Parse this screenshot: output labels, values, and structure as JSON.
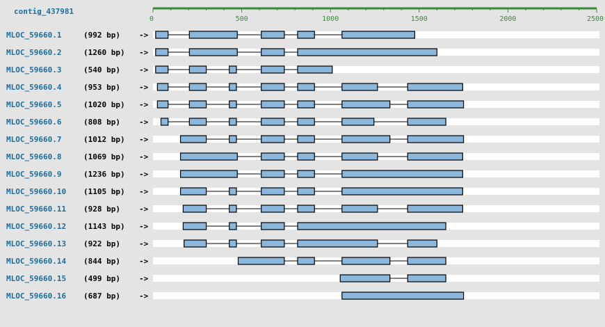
{
  "contig": {
    "label": "contig_437981"
  },
  "colors": {
    "link": "#1c6e9c",
    "axis": "#3a8a3a",
    "exon_fill": "#8ab7db",
    "exon_stroke": "#000000",
    "intron": "#000000",
    "lane_bg": "#ffffff",
    "page_bg": "#e4e4e4"
  },
  "axis": {
    "min": 0,
    "max": 2500,
    "ticks": [
      {
        "value": 0,
        "label": "0"
      },
      {
        "value": 500,
        "label": "500"
      },
      {
        "value": 1000,
        "label": "1000"
      },
      {
        "value": 1500,
        "label": "1500"
      },
      {
        "value": 2000,
        "label": "2000"
      },
      {
        "value": 2500,
        "label": "2500"
      }
    ]
  },
  "arrow": "->",
  "transcripts": [
    {
      "name": "MLOC_59660.1",
      "length": "(992 bp)",
      "exons": [
        [
          15,
          85
        ],
        [
          205,
          475
        ],
        [
          610,
          740
        ],
        [
          815,
          910
        ],
        [
          1065,
          1475
        ]
      ]
    },
    {
      "name": "MLOC_59660.2",
      "length": "(1260 bp)",
      "exons": [
        [
          15,
          85
        ],
        [
          205,
          475
        ],
        [
          610,
          740
        ],
        [
          815,
          1600
        ]
      ]
    },
    {
      "name": "MLOC_59660.3",
      "length": "(540 bp)",
      "exons": [
        [
          15,
          85
        ],
        [
          205,
          300
        ],
        [
          430,
          470
        ],
        [
          610,
          740
        ],
        [
          815,
          1010
        ]
      ]
    },
    {
      "name": "MLOC_59660.4",
      "length": "(953 bp)",
      "exons": [
        [
          25,
          85
        ],
        [
          205,
          300
        ],
        [
          430,
          470
        ],
        [
          610,
          740
        ],
        [
          815,
          910
        ],
        [
          1065,
          1265
        ],
        [
          1435,
          1745
        ]
      ]
    },
    {
      "name": "MLOC_59660.5",
      "length": "(1020 bp)",
      "exons": [
        [
          25,
          85
        ],
        [
          205,
          300
        ],
        [
          430,
          470
        ],
        [
          610,
          740
        ],
        [
          815,
          910
        ],
        [
          1065,
          1335
        ],
        [
          1435,
          1750
        ]
      ]
    },
    {
      "name": "MLOC_59660.6",
      "length": "(808 bp)",
      "exons": [
        [
          45,
          85
        ],
        [
          205,
          300
        ],
        [
          430,
          470
        ],
        [
          610,
          740
        ],
        [
          815,
          910
        ],
        [
          1065,
          1245
        ],
        [
          1435,
          1650
        ]
      ]
    },
    {
      "name": "MLOC_59660.7",
      "length": "(1012 bp)",
      "exons": [
        [
          155,
          300
        ],
        [
          430,
          470
        ],
        [
          610,
          740
        ],
        [
          815,
          910
        ],
        [
          1065,
          1335
        ],
        [
          1435,
          1750
        ]
      ]
    },
    {
      "name": "MLOC_59660.8",
      "length": "(1069 bp)",
      "exons": [
        [
          155,
          475
        ],
        [
          610,
          740
        ],
        [
          815,
          910
        ],
        [
          1065,
          1265
        ],
        [
          1435,
          1745
        ]
      ]
    },
    {
      "name": "MLOC_59660.9",
      "length": "(1236 bp)",
      "exons": [
        [
          155,
          475
        ],
        [
          610,
          740
        ],
        [
          815,
          910
        ],
        [
          1065,
          1745
        ]
      ]
    },
    {
      "name": "MLOC_59660.10",
      "length": "(1105 bp)",
      "exons": [
        [
          155,
          300
        ],
        [
          430,
          470
        ],
        [
          610,
          740
        ],
        [
          815,
          910
        ],
        [
          1065,
          1745
        ]
      ]
    },
    {
      "name": "MLOC_59660.11",
      "length": "(928 bp)",
      "exons": [
        [
          170,
          300
        ],
        [
          430,
          470
        ],
        [
          610,
          740
        ],
        [
          815,
          910
        ],
        [
          1065,
          1265
        ],
        [
          1435,
          1745
        ]
      ]
    },
    {
      "name": "MLOC_59660.12",
      "length": "(1143 bp)",
      "exons": [
        [
          170,
          300
        ],
        [
          430,
          470
        ],
        [
          610,
          740
        ],
        [
          815,
          1650
        ]
      ]
    },
    {
      "name": "MLOC_59660.13",
      "length": "(922 bp)",
      "exons": [
        [
          175,
          300
        ],
        [
          430,
          470
        ],
        [
          610,
          740
        ],
        [
          815,
          1265
        ],
        [
          1435,
          1600
        ]
      ]
    },
    {
      "name": "MLOC_59660.14",
      "length": "(844 bp)",
      "exons": [
        [
          480,
          740
        ],
        [
          815,
          910
        ],
        [
          1065,
          1335
        ],
        [
          1435,
          1650
        ]
      ]
    },
    {
      "name": "MLOC_59660.15",
      "length": "(499 bp)",
      "exons": [
        [
          1055,
          1335
        ],
        [
          1435,
          1650
        ]
      ]
    },
    {
      "name": "MLOC_59660.16",
      "length": "(687 bp)",
      "exons": [
        [
          1065,
          1750
        ]
      ]
    }
  ]
}
